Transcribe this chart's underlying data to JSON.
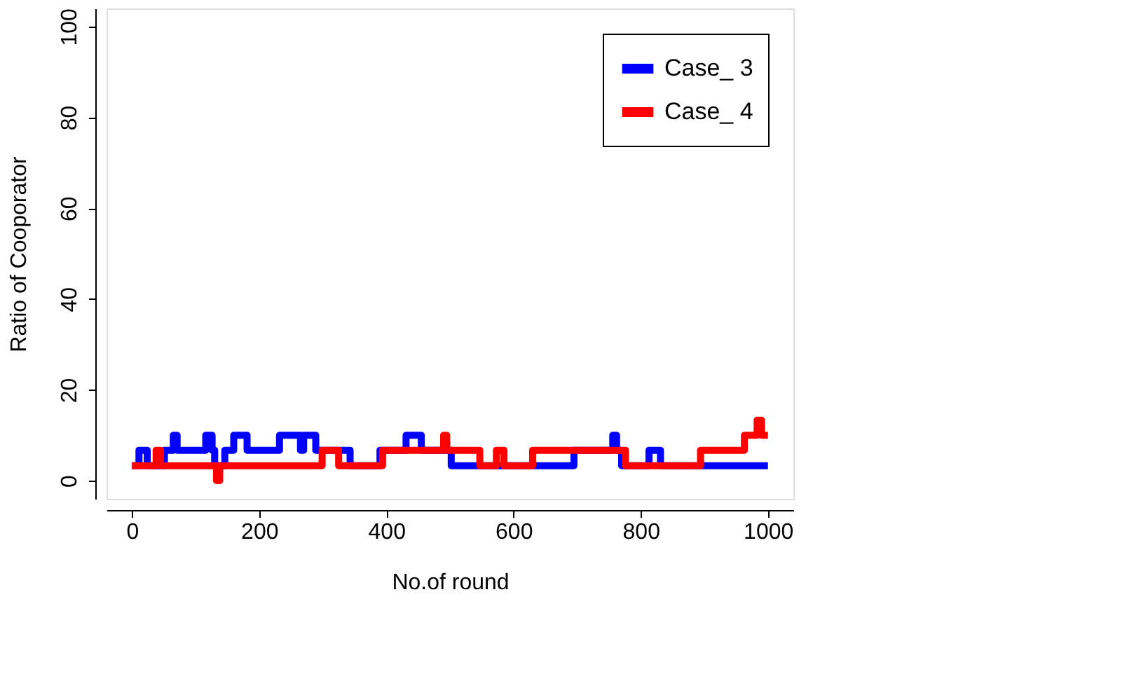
{
  "chart_data": {
    "type": "step",
    "xlabel": "No.of round",
    "ylabel": "Ratio of Cooporator",
    "series": [
      {
        "name": "Case_ 3",
        "color": "#0000ff",
        "x": [
          0,
          11,
          24,
          51,
          65,
          71,
          102,
          116,
          126,
          130,
          146,
          160,
          181,
          232,
          265,
          270,
          274,
          289,
          343,
          390,
          431,
          455,
          471,
          502,
          695,
          756,
          762,
          770,
          813,
          831,
          1000
        ],
        "values": [
          3.3,
          6.7,
          3.3,
          6.7,
          10,
          6.7,
          6.7,
          10,
          6.7,
          3.3,
          6.7,
          10,
          6.7,
          10,
          6.7,
          10,
          10,
          6.7,
          3.3,
          6.7,
          10,
          6.7,
          6.7,
          3.3,
          6.7,
          10,
          6.7,
          3.3,
          6.7,
          3.3,
          3.3
        ]
      },
      {
        "name": "Case_ 4",
        "color": "#ff0000",
        "x": [
          0,
          38,
          45,
          133,
          138,
          299,
          325,
          394,
          490,
          495,
          547,
          573,
          585,
          630,
          776,
          894,
          963,
          983,
          990,
          1000
        ],
        "values": [
          3.3,
          6.7,
          3.3,
          0,
          3.3,
          6.7,
          3.3,
          6.7,
          10,
          6.7,
          3.3,
          6.7,
          3.3,
          6.7,
          3.3,
          6.7,
          10,
          13.3,
          10,
          10
        ]
      }
    ],
    "xlim": [
      -40,
      1040
    ],
    "ylim": [
      -4,
      104
    ],
    "xticks": [
      0,
      200,
      400,
      600,
      800,
      1000
    ],
    "yticks": [
      0,
      20,
      40,
      60,
      80,
      100
    ],
    "grid": false,
    "legend": "top right",
    "marker": "none",
    "line_style": "solid"
  }
}
